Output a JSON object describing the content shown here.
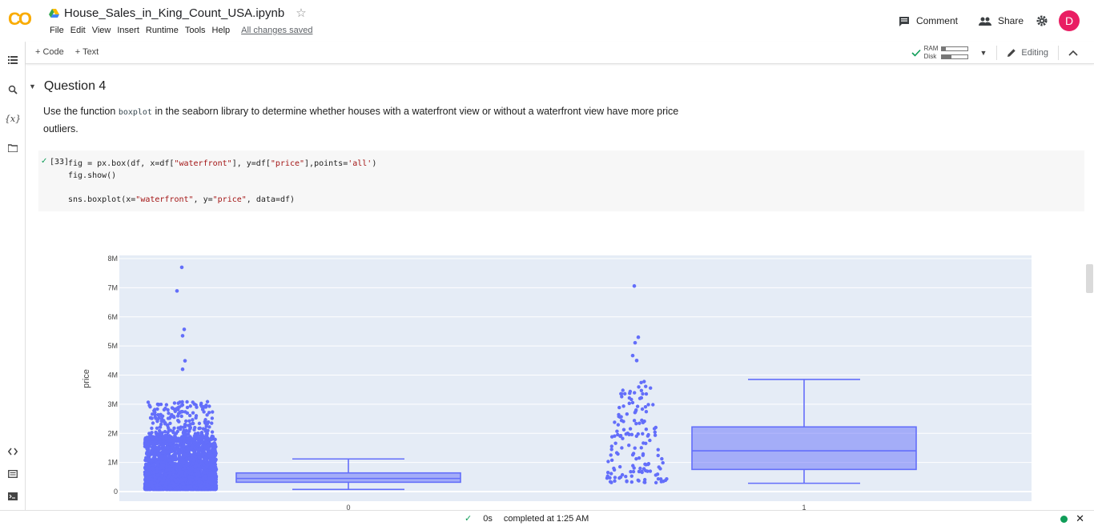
{
  "app": {
    "logo": "CO",
    "notebook_title": "House_Sales_in_King_Count_USA.ipynb",
    "menu": [
      "File",
      "Edit",
      "View",
      "Insert",
      "Runtime",
      "Tools",
      "Help"
    ],
    "save_status": "All changes saved",
    "comment_label": "Comment",
    "share_label": "Share",
    "avatar_letter": "D",
    "avatar_color": "#e91e63"
  },
  "toolbar": {
    "add_code": "+ Code",
    "add_text": "+ Text",
    "ram_label": "RAM",
    "disk_label": "Disk",
    "ram_usage": 0.15,
    "disk_usage": 0.35,
    "editing_label": "Editing"
  },
  "section": {
    "title": "Question 4",
    "text_before": "Use the function ",
    "code_word": "boxplot",
    "text_after": " in the seaborn library to determine whether houses with a waterfront view or without a waterfront view have more price outliers."
  },
  "cell": {
    "exec_count": "[33]",
    "line1_a": "fig = px.box(df, x=df[",
    "line1_s1": "\"waterfront\"",
    "line1_b": "], y=df[",
    "line1_s2": "\"price\"",
    "line1_c": "],points=",
    "line1_s3": "'all'",
    "line1_d": ")",
    "line2": "fig.show()",
    "line3_a": "sns.boxplot(x=",
    "line3_s1": "\"waterfront\"",
    "line3_b": ", y=",
    "line3_s2": "\"price\"",
    "line3_c": ", data=df)"
  },
  "chart_data": {
    "type": "box",
    "ylabel": "price",
    "xlabel": "",
    "categories": [
      "0",
      "1"
    ],
    "ylim": [
      0,
      8000000
    ],
    "yticks": [
      0,
      1000000,
      2000000,
      3000000,
      4000000,
      5000000,
      6000000,
      7000000,
      8000000
    ],
    "ytick_labels": [
      "0",
      "1M",
      "2M",
      "3M",
      "4M",
      "5M",
      "6M",
      "7M",
      "8M"
    ],
    "color": "#636efa",
    "boxes": [
      {
        "category": "0",
        "lower_fence": 75000,
        "q1": 320000,
        "median": 450000,
        "q3": 640000,
        "upper_fence": 1120000,
        "outliers_sample": [
          7700000,
          6890000,
          5570000,
          5350000,
          4490000,
          4200000,
          3800000,
          3650000,
          3400000,
          3200000,
          3000000,
          2900000
        ]
      },
      {
        "category": "1",
        "lower_fence": 285000,
        "q1": 760000,
        "median": 1400000,
        "q3": 2220000,
        "upper_fence": 3850000,
        "outliers_sample": [
          7060000,
          5300000,
          5110000,
          4670000,
          4500000
        ]
      }
    ]
  },
  "status": {
    "duration": "0s",
    "completed": "completed at 1:25 AM"
  }
}
